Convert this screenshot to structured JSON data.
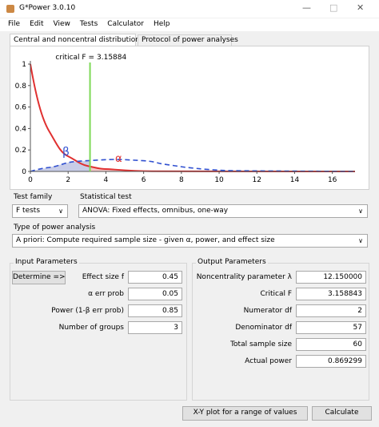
{
  "window": {
    "title": "G*Power 3.0.10"
  },
  "menu": [
    "File",
    "Edit",
    "View",
    "Tests",
    "Calculator",
    "Help"
  ],
  "tabs": [
    "Central and noncentral distributions",
    "Protocol of power analyses"
  ],
  "plot": {
    "critical_label": "critical F =",
    "critical_f": 3.15884,
    "beta_label": "β",
    "alpha_label": "α",
    "xlim": [
      0,
      17.2
    ],
    "ylim": [
      0,
      1
    ],
    "xticks": [
      0,
      2,
      4,
      6,
      8,
      10,
      12,
      14,
      16
    ],
    "yticks": [
      0,
      0.2,
      0.4,
      0.6,
      0.8,
      1
    ]
  },
  "test_family": {
    "label": "Test family",
    "value": "F tests"
  },
  "statistical_test": {
    "label": "Statistical test",
    "value": "ANOVA: Fixed effects, omnibus, one-way"
  },
  "analysis_type": {
    "label": "Type of power analysis",
    "value": "A priori: Compute required sample size - given α, power, and effect size"
  },
  "input": {
    "title": "Input Parameters",
    "button": "Determine =>",
    "rows": [
      [
        "Effect size f",
        "0.45"
      ],
      [
        "α err prob",
        "0.05"
      ],
      [
        "Power (1-β err prob)",
        "0.85"
      ],
      [
        "Number of groups",
        "3"
      ]
    ]
  },
  "output": {
    "title": "Output Parameters",
    "rows": [
      [
        "Noncentrality parameter λ",
        "12.150000"
      ],
      [
        "Critical F",
        "3.158843"
      ],
      [
        "Numerator df",
        "2"
      ],
      [
        "Denominator df",
        "57"
      ],
      [
        "Total sample size",
        "60"
      ],
      [
        "Actual power",
        "0.869299"
      ]
    ]
  },
  "buttons": [
    "X-Y plot for a range of values",
    "Calculate"
  ]
}
